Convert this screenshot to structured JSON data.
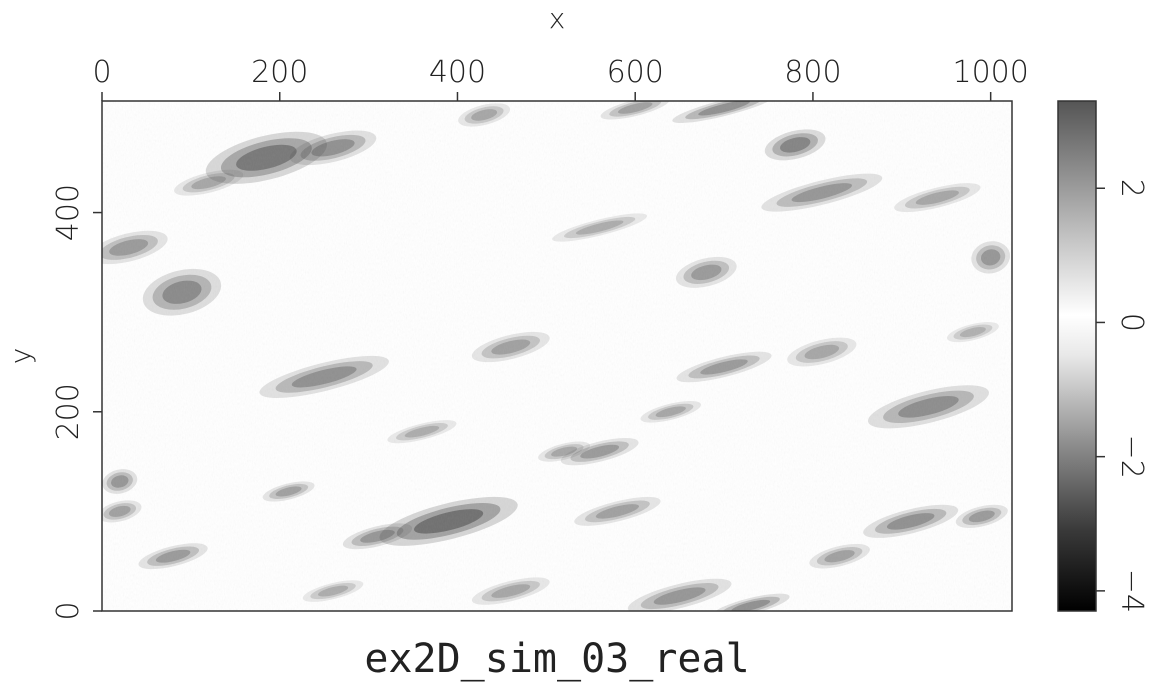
{
  "chart_data": {
    "type": "heatmap",
    "title": "ex2D_sim_03_real",
    "xlabel": "x",
    "ylabel": "y",
    "xlim": [
      0,
      1024
    ],
    "ylim": [
      0,
      512
    ],
    "x_ticks": [
      0,
      200,
      400,
      600,
      800,
      1000
    ],
    "x_tick_labels": [
      "0",
      "200",
      "400",
      "600",
      "800",
      "1000"
    ],
    "y_ticks": [
      0,
      200,
      400
    ],
    "y_tick_labels": [
      "0",
      "200",
      "400"
    ],
    "x_axis_position": "top",
    "colorbar": {
      "position": "right",
      "range": [
        -4.3,
        3.3
      ],
      "ticks": [
        -4,
        -2,
        0,
        2
      ],
      "tick_labels": [
        "−4",
        "−2",
        "0",
        "2"
      ],
      "colormap": "grayscale-diverging",
      "colors": {
        "min": "#000000",
        "low": "#7a7a7a",
        "mid": "#ffffff",
        "high": "#555555"
      }
    },
    "grid": false,
    "blobs": [
      {
        "x": 185,
        "y": 455,
        "sx": 70,
        "sy": 22,
        "v": -3.6
      },
      {
        "x": 260,
        "y": 465,
        "sx": 50,
        "sy": 14,
        "v": -2.8
      },
      {
        "x": 90,
        "y": 320,
        "sx": 45,
        "sy": 22,
        "v": -3.0
      },
      {
        "x": 30,
        "y": 365,
        "sx": 45,
        "sy": 14,
        "v": -2.4
      },
      {
        "x": 780,
        "y": 468,
        "sx": 35,
        "sy": 14,
        "v": -3.2
      },
      {
        "x": 810,
        "y": 420,
        "sx": 70,
        "sy": 12,
        "v": -2.6
      },
      {
        "x": 940,
        "y": 415,
        "sx": 50,
        "sy": 10,
        "v": -2.0
      },
      {
        "x": 700,
        "y": 505,
        "sx": 60,
        "sy": 8,
        "v": -2.8
      },
      {
        "x": 600,
        "y": 505,
        "sx": 40,
        "sy": 8,
        "v": -2.2
      },
      {
        "x": 430,
        "y": 498,
        "sx": 30,
        "sy": 10,
        "v": -2.0
      },
      {
        "x": 680,
        "y": 340,
        "sx": 35,
        "sy": 14,
        "v": -2.4
      },
      {
        "x": 1000,
        "y": 355,
        "sx": 22,
        "sy": 16,
        "v": -2.6
      },
      {
        "x": 560,
        "y": 385,
        "sx": 55,
        "sy": 8,
        "v": -1.8
      },
      {
        "x": 250,
        "y": 235,
        "sx": 75,
        "sy": 14,
        "v": -2.8
      },
      {
        "x": 460,
        "y": 265,
        "sx": 45,
        "sy": 12,
        "v": -2.2
      },
      {
        "x": 700,
        "y": 245,
        "sx": 55,
        "sy": 10,
        "v": -2.4
      },
      {
        "x": 810,
        "y": 260,
        "sx": 40,
        "sy": 12,
        "v": -2.0
      },
      {
        "x": 930,
        "y": 205,
        "sx": 70,
        "sy": 16,
        "v": -2.9
      },
      {
        "x": 640,
        "y": 200,
        "sx": 35,
        "sy": 8,
        "v": -2.0
      },
      {
        "x": 390,
        "y": 90,
        "sx": 80,
        "sy": 18,
        "v": -3.9
      },
      {
        "x": 310,
        "y": 75,
        "sx": 40,
        "sy": 10,
        "v": -2.6
      },
      {
        "x": 560,
        "y": 160,
        "sx": 45,
        "sy": 10,
        "v": -2.4
      },
      {
        "x": 580,
        "y": 100,
        "sx": 50,
        "sy": 10,
        "v": -2.2
      },
      {
        "x": 20,
        "y": 130,
        "sx": 20,
        "sy": 12,
        "v": -2.6
      },
      {
        "x": 20,
        "y": 100,
        "sx": 25,
        "sy": 10,
        "v": -2.2
      },
      {
        "x": 210,
        "y": 120,
        "sx": 30,
        "sy": 8,
        "v": -2.2
      },
      {
        "x": 80,
        "y": 55,
        "sx": 40,
        "sy": 10,
        "v": -2.4
      },
      {
        "x": 460,
        "y": 20,
        "sx": 45,
        "sy": 10,
        "v": -2.0
      },
      {
        "x": 650,
        "y": 15,
        "sx": 60,
        "sy": 12,
        "v": -2.6
      },
      {
        "x": 730,
        "y": 5,
        "sx": 45,
        "sy": 8,
        "v": -2.8
      },
      {
        "x": 910,
        "y": 90,
        "sx": 55,
        "sy": 12,
        "v": -2.8
      },
      {
        "x": 990,
        "y": 95,
        "sx": 30,
        "sy": 10,
        "v": -2.4
      },
      {
        "x": 830,
        "y": 55,
        "sx": 35,
        "sy": 10,
        "v": -2.2
      },
      {
        "x": 360,
        "y": 180,
        "sx": 40,
        "sy": 8,
        "v": -1.8
      },
      {
        "x": 120,
        "y": 430,
        "sx": 40,
        "sy": 10,
        "v": -2.0
      },
      {
        "x": 980,
        "y": 280,
        "sx": 30,
        "sy": 8,
        "v": -1.6
      },
      {
        "x": 520,
        "y": 160,
        "sx": 30,
        "sy": 8,
        "v": -2.0
      },
      {
        "x": 260,
        "y": 20,
        "sx": 35,
        "sy": 8,
        "v": -1.8
      }
    ]
  }
}
